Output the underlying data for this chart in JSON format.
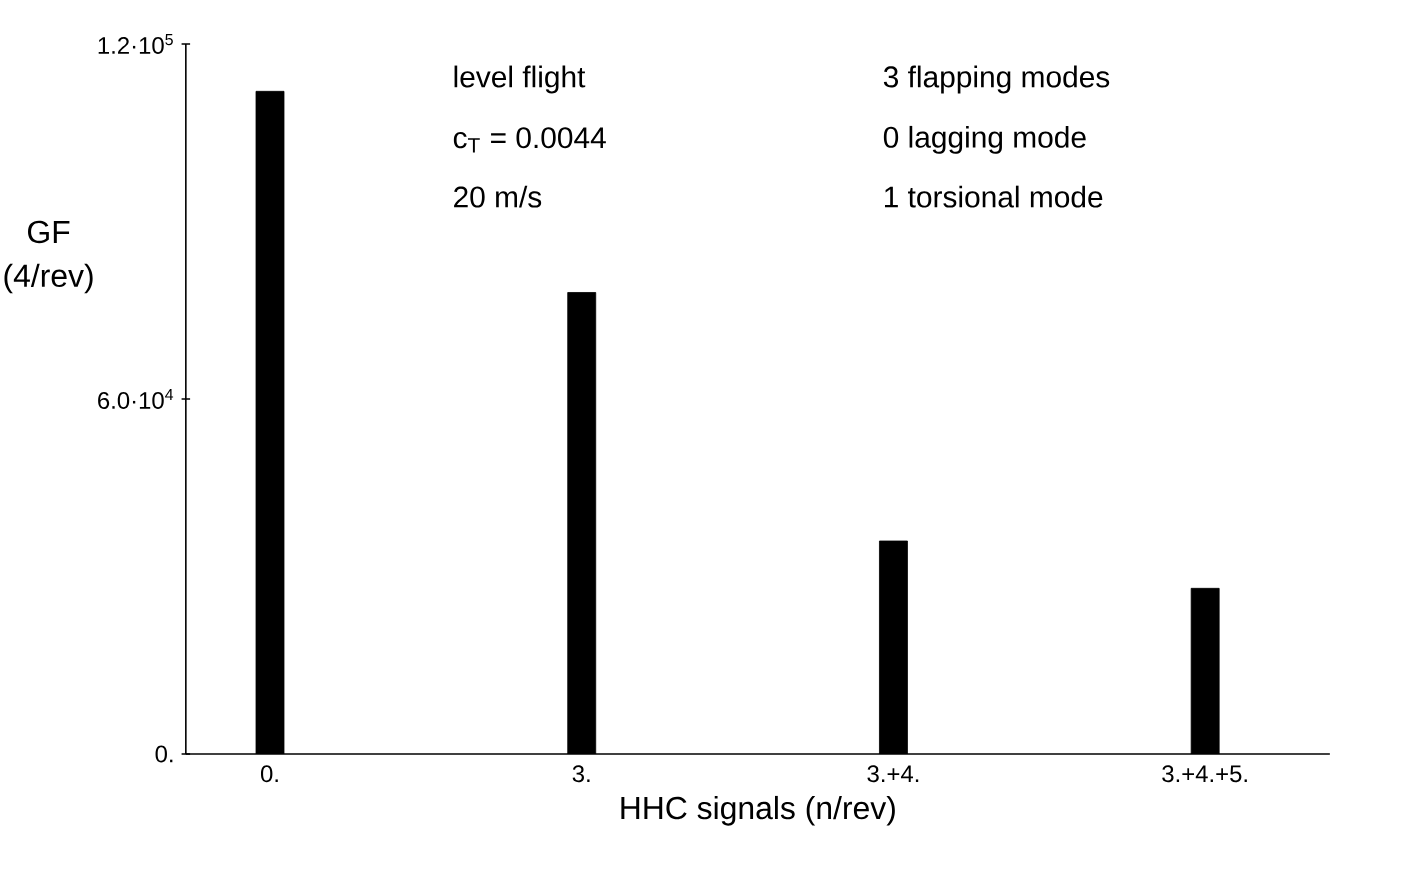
{
  "chart_data": {
    "type": "bar",
    "xlabel": "HHC signals (n/rev)",
    "ylabel": "GF (4/rev)",
    "categories": [
      "0.",
      "3.",
      "3.+4.",
      "3.+4.+5."
    ],
    "values": [
      112000,
      78000,
      36000,
      28000
    ],
    "color": "#000000",
    "ylim": [
      0,
      120000
    ],
    "yticks": [
      {
        "value": 0,
        "label": "0."
      },
      {
        "value": 60000,
        "label": "6.0·10$^{4}$"
      },
      {
        "value": 120000,
        "label": "1.2·10$^{5}$"
      }
    ],
    "annotations": [
      "level flight",
      "c$_{T}$ = 0.0044",
      "20 m/s",
      "3 flapping modes",
      "0 lagging mode",
      "1 torsional mode"
    ],
    "grid": false
  }
}
